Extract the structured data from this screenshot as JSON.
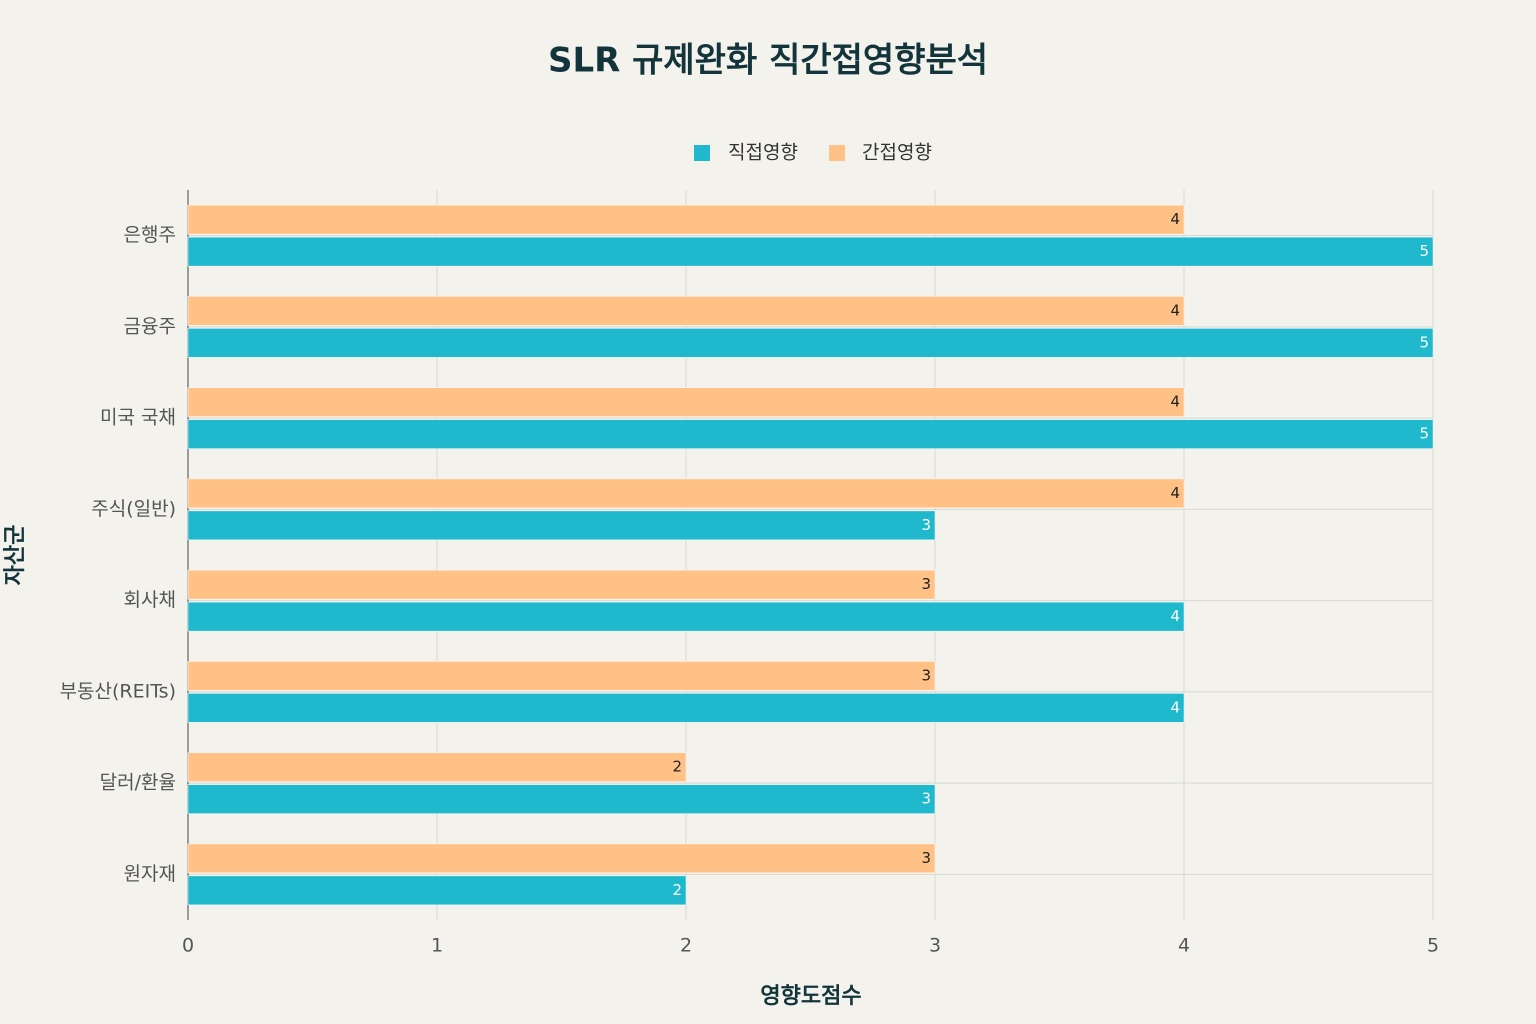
{
  "chart_data": {
    "type": "hbar",
    "title": "SLR 규제완화 직간접영향분석",
    "x_label": "영향도점수",
    "y_label": "자산군",
    "categories": [
      "은행주",
      "금융주",
      "미국 국채",
      "주식(일반)",
      "회사채",
      "부동산(REITs)",
      "달러/환율",
      "원자재"
    ],
    "series": [
      {
        "name": "직접영향",
        "color": "#1fb8cd",
        "values": [
          5,
          5,
          5,
          3,
          4,
          4,
          3,
          2
        ]
      },
      {
        "name": "간접영향",
        "color": "#ffc185",
        "values": [
          4,
          4,
          4,
          4,
          3,
          3,
          2,
          3
        ]
      }
    ],
    "xlim": [
      0,
      5
    ],
    "xticks": [
      0,
      1,
      2,
      3,
      4,
      5
    ],
    "grid": true,
    "legend": "top"
  }
}
